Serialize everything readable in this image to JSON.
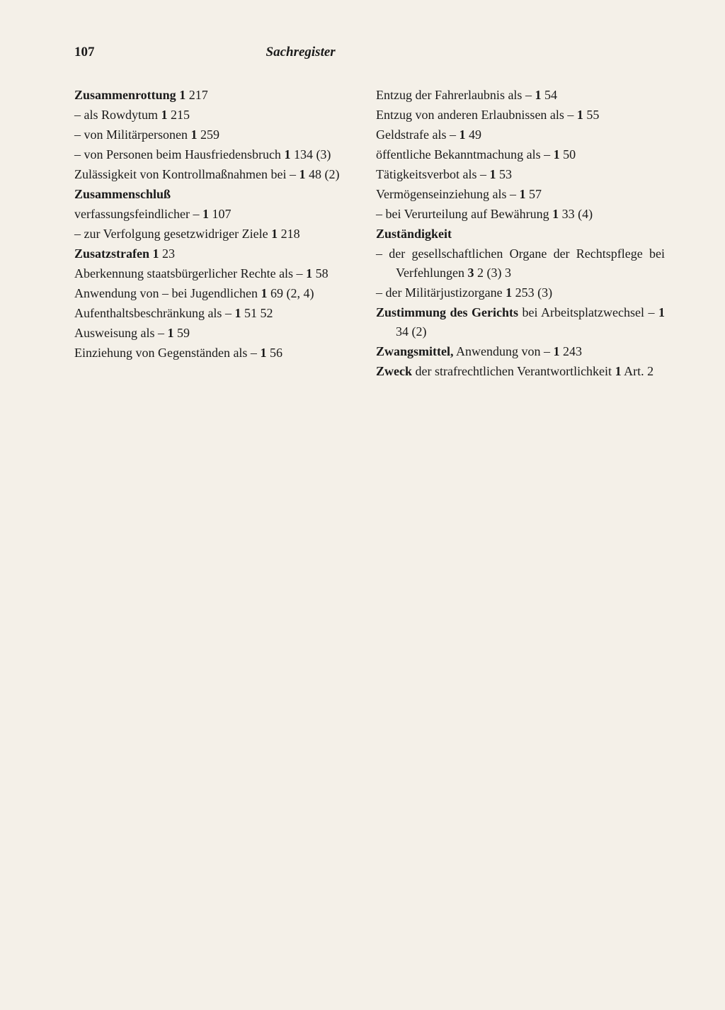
{
  "page_number": "107",
  "header_title": "Sachregister",
  "columns": {
    "left": [
      [
        [
          "b",
          "Zusammenrottung"
        ],
        [
          "",
          "   "
        ],
        [
          "rb",
          "1"
        ],
        [
          "",
          " 217"
        ]
      ],
      [
        [
          "",
          "–  als Rowdytum  "
        ],
        [
          "rb",
          "1"
        ],
        [
          "",
          " 215"
        ]
      ],
      [
        [
          "",
          "–  von Militärpersonen  "
        ],
        [
          "rb",
          "1"
        ],
        [
          "",
          " 259"
        ]
      ],
      [
        [
          "",
          "–  von Personen beim Hausfriedensbruch "
        ],
        [
          "rb",
          "1"
        ],
        [
          "",
          " 134 (3)"
        ]
      ],
      [
        [
          "",
          "Zulässigkeit von Kontrollmaßnahmen bei – "
        ],
        [
          "rb",
          "1"
        ],
        [
          "",
          " 48 (2)"
        ]
      ],
      [
        [
          "b",
          "Zusammenschluß"
        ]
      ],
      [
        [
          "",
          "verfassungsfeindlicher –  "
        ],
        [
          "rb",
          "1"
        ],
        [
          "",
          " 107"
        ]
      ],
      [
        [
          "",
          "–  zur Verfolgung gesetzwidriger Ziele "
        ],
        [
          "rb",
          "1"
        ],
        [
          "",
          " 218"
        ]
      ],
      [
        [
          "b",
          "Zusatzstrafen"
        ],
        [
          "",
          "   "
        ],
        [
          "rb",
          "1"
        ],
        [
          "",
          " 23"
        ]
      ],
      [
        [
          "",
          "Aberkennung staatsbürgerlicher Rechte als –  "
        ],
        [
          "rb",
          "1"
        ],
        [
          "",
          " 58"
        ]
      ],
      [
        [
          "",
          "Anwendung von – bei Jugendlichen  "
        ],
        [
          "rb",
          "1"
        ],
        [
          "",
          " 69 (2, 4)"
        ]
      ],
      [
        [
          "",
          "Aufenthaltsbeschränkung als –  "
        ],
        [
          "rb",
          "1"
        ],
        [
          "",
          " 51  52"
        ]
      ],
      [
        [
          "",
          "Ausweisung als –   "
        ],
        [
          "rb",
          "1"
        ],
        [
          "",
          " 59"
        ]
      ],
      [
        [
          "",
          "Einziehung von Gegenständen als –  "
        ],
        [
          "rb",
          "1"
        ],
        [
          "",
          " 56"
        ]
      ]
    ],
    "right": [
      [
        [
          "",
          "Entzug der Fahrerlaubnis als –  "
        ],
        [
          "rb",
          "1"
        ],
        [
          "",
          " 54"
        ]
      ],
      [
        [
          "",
          "Entzug von anderen Erlaubnissen als –  "
        ],
        [
          "rb",
          "1"
        ],
        [
          "",
          " 55"
        ]
      ],
      [
        [
          "",
          "Geldstrafe als –   "
        ],
        [
          "rb",
          "1"
        ],
        [
          "",
          " 49"
        ]
      ],
      [
        [
          "",
          "öffentliche Bekanntmachung als –  "
        ],
        [
          "rb",
          "1"
        ],
        [
          "",
          " 50"
        ]
      ],
      [
        [
          "",
          "Tätigkeitsverbot als –   "
        ],
        [
          "rb",
          "1"
        ],
        [
          "",
          " 53"
        ]
      ],
      [
        [
          "",
          "Vermögenseinziehung als –  "
        ],
        [
          "rb",
          "1"
        ],
        [
          "",
          " 57"
        ]
      ],
      [
        [
          "",
          "–  bei Verurteilung auf Bewährung  "
        ],
        [
          "rb",
          "1"
        ],
        [
          "",
          " 33 (4)"
        ]
      ],
      [
        [
          "b",
          "Zuständigkeit"
        ]
      ],
      [
        [
          "",
          "–  der gesellschaftlichen Organe der Rechtspflege bei Verfehlungen  "
        ],
        [
          "rb",
          "3"
        ],
        [
          "",
          " 2 (3) 3"
        ]
      ],
      [
        [
          "",
          "–  der Militärjustizorgane  "
        ],
        [
          "rb",
          "1"
        ],
        [
          "",
          " 253 (3)"
        ]
      ],
      [
        [
          "b",
          "Zustimmung des Gerichts"
        ],
        [
          "",
          " bei Arbeitsplatzwechsel –  "
        ],
        [
          "rb",
          "1"
        ],
        [
          "",
          " 34 (2)"
        ]
      ],
      [
        [
          "b",
          "Zwangsmittel,"
        ],
        [
          "",
          " Anwendung von –  "
        ],
        [
          "rb",
          "1"
        ],
        [
          "",
          " 243"
        ]
      ],
      [
        [
          "b",
          "Zweck"
        ],
        [
          "",
          " der strafrechtlichen Verantwortlichkeit  "
        ],
        [
          "rb",
          "1"
        ],
        [
          "",
          " Art. 2"
        ]
      ]
    ]
  }
}
